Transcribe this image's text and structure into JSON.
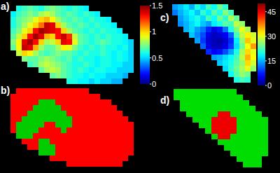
{
  "chart_data": [
    {
      "type": "heatmap",
      "title": "a)",
      "zlim": [
        0,
        1.5
      ],
      "zticks": [
        0,
        0.5,
        1,
        1.5
      ],
      "cells": [
        [
          null,
          0.6,
          0.65,
          0.7,
          0.65,
          0.6,
          0.7,
          0.75,
          0.7,
          0.65,
          0.6,
          0.65,
          0.6,
          0.55,
          null,
          null,
          null,
          null,
          null,
          null,
          null,
          null
        ],
        [
          0.55,
          0.65,
          0.7,
          0.75,
          0.7,
          0.8,
          0.85,
          0.8,
          0.7,
          0.65,
          0.7,
          0.65,
          0.6,
          0.65,
          0.6,
          0.55,
          null,
          null,
          null,
          null,
          null,
          null
        ],
        [
          0.6,
          0.7,
          0.75,
          0.8,
          0.9,
          1,
          1.05,
          0.95,
          0.8,
          0.7,
          0.65,
          0.7,
          0.65,
          0.6,
          0.65,
          0.6,
          0.6,
          0.55,
          null,
          null,
          null,
          null
        ],
        [
          0.6,
          0.7,
          0.8,
          0.9,
          1,
          1.15,
          1.4,
          1.35,
          1,
          0.8,
          0.7,
          0.65,
          0.7,
          0.65,
          0.6,
          0.65,
          0.6,
          0.6,
          0.55,
          null,
          null,
          null
        ],
        [
          0.65,
          0.75,
          0.9,
          1,
          1.3,
          1.45,
          1.4,
          1.35,
          1.3,
          1,
          0.8,
          0.7,
          0.65,
          0.6,
          0.65,
          0.6,
          0.65,
          0.6,
          0.6,
          0.55,
          null,
          null
        ],
        [
          0.7,
          0.85,
          1,
          1.3,
          1.45,
          1.35,
          1.05,
          1,
          1.3,
          1.4,
          1.25,
          0.85,
          0.7,
          0.65,
          0.6,
          0.65,
          0.6,
          0.65,
          0.6,
          0.6,
          0.55,
          null
        ],
        [
          0.75,
          0.95,
          1.35,
          1.45,
          1.3,
          1,
          0.8,
          0.85,
          1,
          1.35,
          1.3,
          0.9,
          0.7,
          0.65,
          0.6,
          0.65,
          0.7,
          0.65,
          0.6,
          0.6,
          0.55,
          0.5
        ],
        [
          0.7,
          0.95,
          1.4,
          1.35,
          1.05,
          0.8,
          0.7,
          0.7,
          0.8,
          0.95,
          0.9,
          0.75,
          0.65,
          0.6,
          0.65,
          0.6,
          0.65,
          0.6,
          0.6,
          0.55,
          0.6,
          0.5
        ],
        [
          null,
          0.85,
          1,
          0.95,
          0.8,
          0.7,
          0.65,
          0.7,
          0.75,
          0.7,
          0.7,
          0.65,
          0.6,
          0.65,
          0.6,
          0.6,
          0.65,
          0.6,
          0.55,
          0.6,
          0.55,
          0.5
        ],
        [
          null,
          null,
          0.75,
          0.7,
          0.7,
          0.75,
          0.8,
          0.75,
          0.7,
          0.65,
          0.7,
          0.6,
          0.65,
          0.6,
          0.6,
          0.55,
          0.6,
          0.6,
          0.55,
          0.6,
          0.55,
          0.5
        ],
        [
          null,
          null,
          null,
          0.65,
          0.7,
          0.8,
          0.85,
          0.8,
          0.75,
          0.7,
          0.65,
          0.6,
          0.6,
          0.65,
          0.6,
          0.55,
          0.6,
          0.6,
          0.55,
          0.55,
          0.5,
          0.5
        ],
        [
          null,
          null,
          null,
          null,
          null,
          0.7,
          0.8,
          0.85,
          0.8,
          0.7,
          0.65,
          0.6,
          0.65,
          0.6,
          0.55,
          0.6,
          0.6,
          0.55,
          0.55,
          0.5,
          0.5,
          0.5
        ],
        [
          null,
          null,
          null,
          null,
          null,
          null,
          null,
          0.7,
          0.75,
          0.7,
          0.65,
          0.6,
          0.6,
          0.55,
          0.6,
          0.55,
          0.55,
          0.5,
          0.5,
          0.5,
          0.45,
          null
        ],
        [
          null,
          null,
          null,
          null,
          null,
          null,
          null,
          null,
          null,
          null,
          0.6,
          0.6,
          0.55,
          0.55,
          0.5,
          0.55,
          0.5,
          0.5,
          0.45,
          0.45,
          null,
          null
        ]
      ]
    },
    {
      "type": "heatmap",
      "title": "b)",
      "colors": [
        "#ff0000",
        "#00cc00"
      ],
      "cells": [
        [
          null,
          0,
          0,
          0,
          0,
          0,
          0,
          0,
          0,
          0,
          0,
          0,
          0,
          0,
          null,
          null,
          null,
          null,
          null,
          null,
          null,
          null
        ],
        [
          0,
          0,
          0,
          0,
          0,
          0,
          0,
          0,
          0,
          0,
          0,
          0,
          0,
          0,
          0,
          0,
          null,
          null,
          null,
          null,
          null,
          null
        ],
        [
          0,
          0,
          0,
          0,
          0,
          1,
          1,
          1,
          0,
          0,
          0,
          0,
          0,
          0,
          0,
          0,
          0,
          0,
          null,
          null,
          null,
          null
        ],
        [
          0,
          0,
          0,
          0,
          1,
          1,
          1,
          1,
          1,
          0,
          0,
          0,
          0,
          0,
          0,
          0,
          0,
          0,
          0,
          null,
          null,
          null
        ],
        [
          0,
          0,
          0,
          1,
          1,
          1,
          1,
          1,
          1,
          1,
          0,
          0,
          0,
          0,
          0,
          0,
          0,
          0,
          0,
          0,
          null,
          null
        ],
        [
          0,
          0,
          1,
          1,
          1,
          1,
          1,
          1,
          1,
          1,
          1,
          0,
          0,
          0,
          0,
          0,
          0,
          0,
          0,
          0,
          0,
          null
        ],
        [
          0,
          1,
          1,
          1,
          1,
          1,
          0,
          0,
          1,
          1,
          1,
          0,
          0,
          0,
          0,
          0,
          0,
          0,
          0,
          0,
          0,
          0
        ],
        [
          0,
          1,
          1,
          1,
          1,
          0,
          0,
          0,
          0,
          1,
          0,
          0,
          0,
          0,
          0,
          0,
          0,
          0,
          0,
          0,
          0,
          0
        ],
        [
          null,
          1,
          1,
          1,
          0,
          0,
          0,
          0,
          0,
          0,
          0,
          0,
          0,
          0,
          0,
          0,
          0,
          0,
          0,
          0,
          0,
          0
        ],
        [
          null,
          null,
          0,
          0,
          0,
          1,
          1,
          0,
          0,
          0,
          0,
          0,
          0,
          0,
          0,
          0,
          0,
          0,
          0,
          0,
          0,
          0
        ],
        [
          null,
          null,
          null,
          0,
          0,
          1,
          1,
          1,
          0,
          0,
          0,
          0,
          0,
          0,
          0,
          0,
          0,
          0,
          0,
          0,
          0,
          0
        ],
        [
          null,
          null,
          null,
          null,
          null,
          1,
          1,
          1,
          0,
          0,
          0,
          0,
          0,
          0,
          0,
          0,
          0,
          0,
          0,
          0,
          0,
          0
        ],
        [
          null,
          null,
          null,
          null,
          null,
          null,
          null,
          0,
          0,
          0,
          0,
          0,
          0,
          0,
          0,
          0,
          0,
          0,
          0,
          0,
          0,
          null
        ],
        [
          null,
          null,
          null,
          null,
          null,
          null,
          null,
          null,
          null,
          null,
          0,
          0,
          0,
          0,
          0,
          0,
          0,
          0,
          0,
          0,
          null,
          null
        ]
      ]
    },
    {
      "type": "heatmap",
      "title": "c)",
      "zlim": [
        0,
        50
      ],
      "zticks": [
        0,
        15,
        30,
        45
      ],
      "cells": [
        [
          14,
          16,
          18,
          15,
          20,
          17,
          22,
          19,
          24,
          21,
          null,
          null,
          null,
          null,
          null
        ],
        [
          12,
          15,
          17,
          19,
          16,
          21,
          18,
          23,
          20,
          25,
          22,
          null,
          null,
          null,
          null
        ],
        [
          null,
          14,
          16,
          18,
          20,
          17,
          22,
          19,
          24,
          21,
          27,
          24,
          null,
          null,
          null
        ],
        [
          null,
          13,
          15,
          17,
          19,
          16,
          14,
          18,
          20,
          23,
          22,
          28,
          26,
          null,
          null
        ],
        [
          null,
          null,
          15,
          17,
          14,
          12,
          8,
          5,
          7,
          12,
          20,
          25,
          30,
          27,
          null
        ],
        [
          null,
          null,
          null,
          16,
          13,
          10,
          5,
          3,
          4,
          6,
          11,
          22,
          28,
          32,
          29
        ],
        [
          null,
          null,
          null,
          null,
          14,
          9,
          4,
          3,
          2,
          4,
          8,
          18,
          26,
          34,
          30
        ],
        [
          null,
          null,
          null,
          null,
          null,
          11,
          5,
          3,
          3,
          5,
          9,
          17,
          24,
          31,
          36
        ],
        [
          null,
          null,
          null,
          null,
          null,
          null,
          8,
          6,
          7,
          10,
          14,
          20,
          27,
          33,
          30
        ],
        [
          null,
          null,
          null,
          null,
          null,
          null,
          null,
          14,
          15,
          17,
          19,
          22,
          28,
          35,
          31
        ],
        [
          null,
          null,
          null,
          null,
          null,
          null,
          null,
          null,
          16,
          18,
          20,
          23,
          26,
          33,
          29
        ],
        [
          null,
          null,
          null,
          null,
          null,
          null,
          null,
          null,
          null,
          17,
          21,
          24,
          27,
          30,
          26
        ],
        [
          null,
          null,
          null,
          null,
          null,
          null,
          null,
          null,
          null,
          null,
          19,
          23,
          26,
          24,
          null
        ],
        [
          null,
          null,
          null,
          null,
          null,
          null,
          null,
          null,
          null,
          null,
          null,
          20,
          22,
          21,
          null
        ]
      ]
    },
    {
      "type": "heatmap",
      "title": "d)",
      "colors": [
        "#00dd00",
        "#ee0000"
      ],
      "cells": [
        [
          0,
          0,
          0,
          0,
          0,
          0,
          0,
          0,
          0,
          0,
          null,
          null,
          null,
          null,
          null
        ],
        [
          0,
          0,
          0,
          0,
          0,
          0,
          0,
          0,
          0,
          0,
          0,
          null,
          null,
          null,
          null
        ],
        [
          null,
          0,
          0,
          0,
          0,
          0,
          0,
          0,
          0,
          0,
          0,
          0,
          null,
          null,
          null
        ],
        [
          null,
          0,
          0,
          0,
          0,
          0,
          0,
          0,
          0,
          0,
          0,
          0,
          0,
          null,
          null
        ],
        [
          null,
          null,
          0,
          0,
          0,
          0,
          0,
          1,
          1,
          0,
          0,
          0,
          0,
          0,
          null
        ],
        [
          null,
          null,
          null,
          0,
          0,
          0,
          1,
          1,
          1,
          1,
          0,
          0,
          0,
          0,
          0
        ],
        [
          null,
          null,
          null,
          null,
          0,
          0,
          1,
          1,
          1,
          1,
          0,
          0,
          0,
          0,
          0
        ],
        [
          null,
          null,
          null,
          null,
          null,
          0,
          1,
          1,
          1,
          1,
          0,
          0,
          0,
          0,
          0
        ],
        [
          null,
          null,
          null,
          null,
          null,
          null,
          0,
          1,
          1,
          0,
          0,
          0,
          0,
          0,
          0
        ],
        [
          null,
          null,
          null,
          null,
          null,
          null,
          null,
          0,
          0,
          0,
          0,
          0,
          0,
          0,
          0
        ],
        [
          null,
          null,
          null,
          null,
          null,
          null,
          null,
          null,
          0,
          0,
          0,
          0,
          0,
          0,
          0
        ],
        [
          null,
          null,
          null,
          null,
          null,
          null,
          null,
          null,
          null,
          0,
          0,
          0,
          0,
          0,
          0
        ],
        [
          null,
          null,
          null,
          null,
          null,
          null,
          null,
          null,
          null,
          null,
          0,
          0,
          0,
          0,
          null
        ],
        [
          null,
          null,
          null,
          null,
          null,
          null,
          null,
          null,
          null,
          null,
          null,
          0,
          0,
          0,
          null
        ]
      ]
    }
  ]
}
